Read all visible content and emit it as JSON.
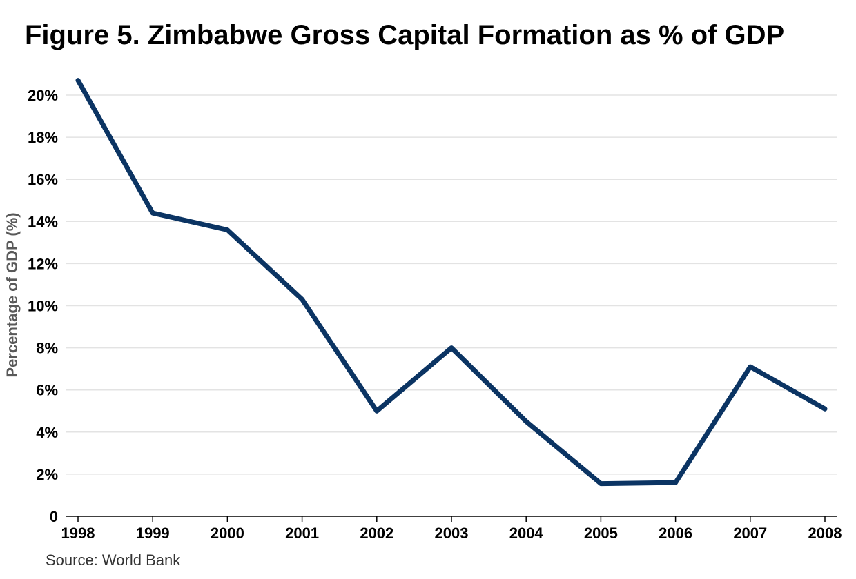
{
  "chart_data": {
    "type": "line",
    "title": "Figure 5. Zimbabwe Gross Capital Formation as % of GDP",
    "xlabel": "",
    "ylabel": "Percentage of GDP (%)",
    "source": "Source: World Bank",
    "x": [
      "1998",
      "1999",
      "2000",
      "2001",
      "2002",
      "2003",
      "2004",
      "2005",
      "2006",
      "2007",
      "2008"
    ],
    "series": [
      {
        "values": [
          20.7,
          14.4,
          13.6,
          10.3,
          5.0,
          8.0,
          4.5,
          1.55,
          1.6,
          7.1,
          5.1
        ],
        "color": "#0b3463"
      }
    ],
    "ylim": [
      0,
      20
    ],
    "yticks": [
      0,
      2,
      4,
      6,
      8,
      10,
      12,
      14,
      16,
      18,
      20
    ],
    "ytick_labels": [
      "0",
      "2%",
      "4%",
      "6%",
      "8%",
      "10%",
      "12%",
      "14%",
      "16%",
      "18%",
      "20%"
    ],
    "grid": true,
    "legend": "none"
  }
}
